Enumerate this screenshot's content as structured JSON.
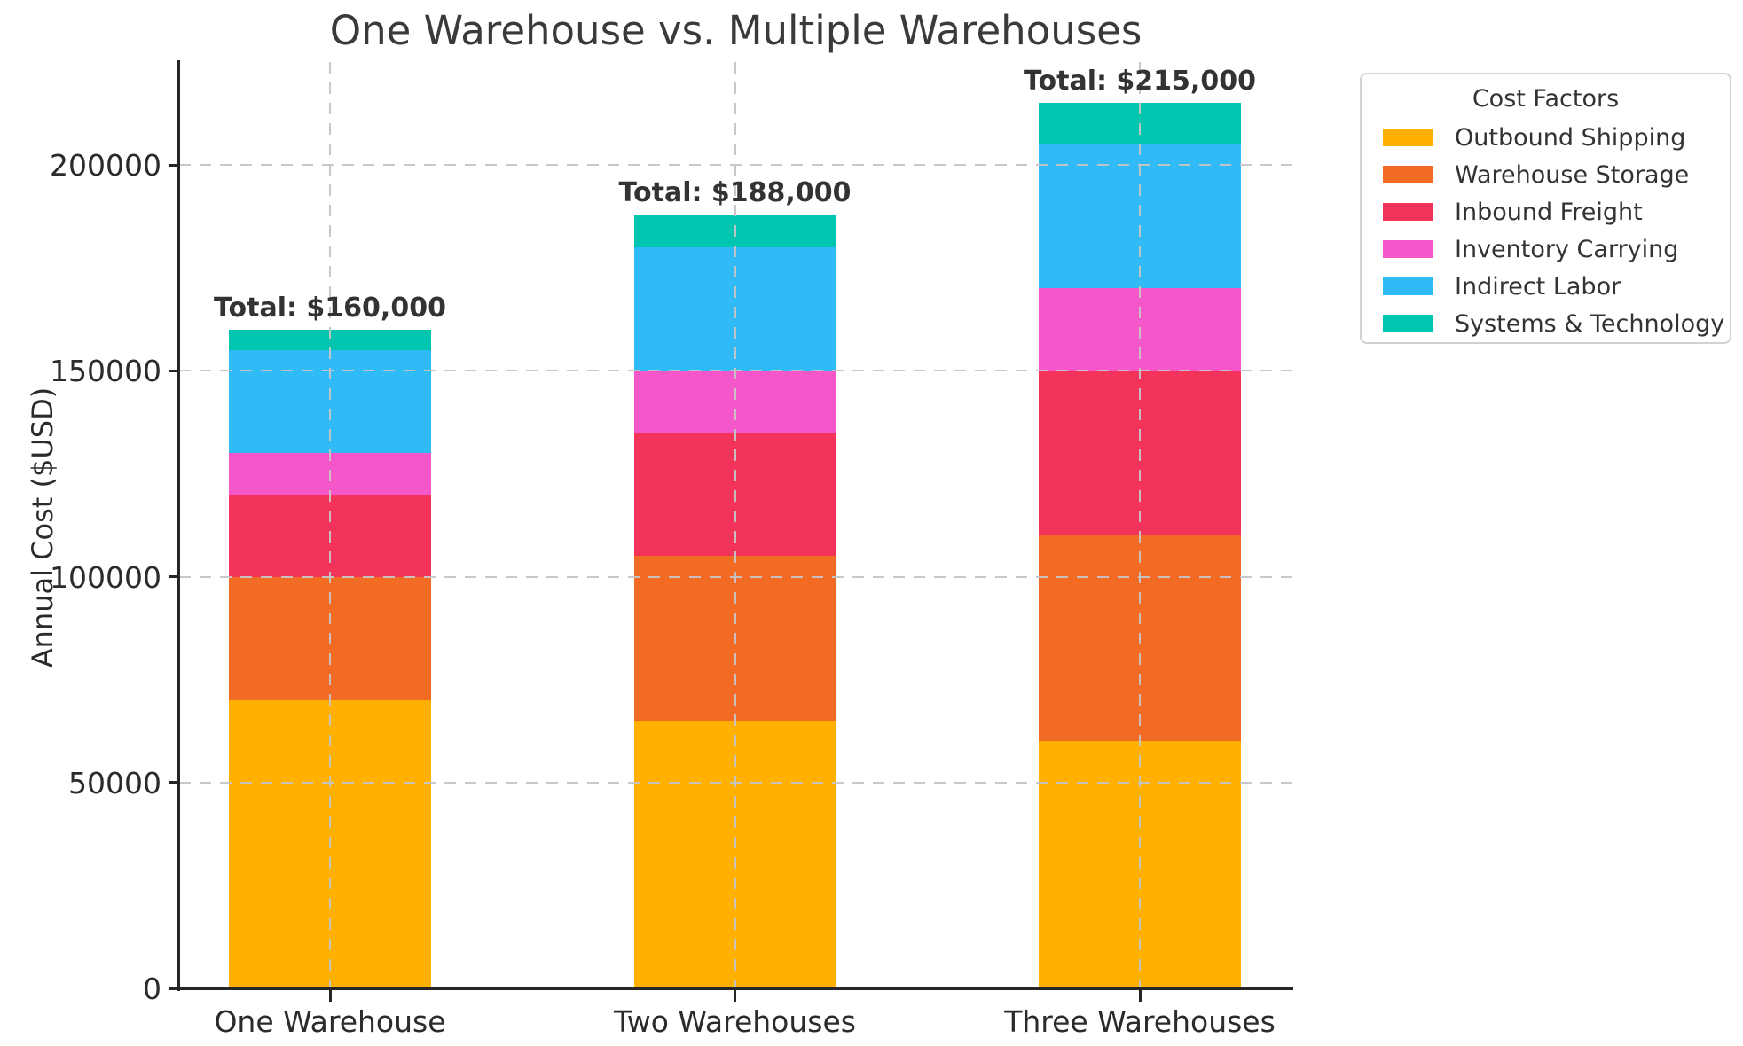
{
  "chart_data": {
    "type": "bar",
    "stacked": true,
    "title": "One Warehouse vs. Multiple Warehouses",
    "ylabel": "Annual Cost ($USD)",
    "xlabel": "",
    "categories": [
      "One Warehouse",
      "Two Warehouses",
      "Three Warehouses"
    ],
    "series": [
      {
        "name": "Outbound Shipping",
        "color": "#FFB000",
        "values": [
          70000,
          65000,
          60000
        ]
      },
      {
        "name": "Warehouse Storage",
        "color": "#F26B24",
        "values": [
          30000,
          40000,
          50000
        ]
      },
      {
        "name": "Inbound Freight",
        "color": "#F4335B",
        "values": [
          20000,
          30000,
          40000
        ]
      },
      {
        "name": "Inventory Carrying",
        "color": "#F556C9",
        "values": [
          10000,
          15000,
          20000
        ]
      },
      {
        "name": "Indirect Labor",
        "color": "#2FBCF6",
        "values": [
          25000,
          30000,
          35000
        ]
      },
      {
        "name": "Systems & Technology",
        "color": "#00C6B0",
        "values": [
          5000,
          8000,
          10000
        ]
      }
    ],
    "totals": [
      160000,
      188000,
      215000
    ],
    "total_labels": [
      "Total: $160,000",
      "Total: $188,000",
      "Total: $215,000"
    ],
    "yticks": [
      0,
      50000,
      100000,
      150000,
      200000
    ],
    "ytick_labels": [
      "0",
      "50000",
      "100000",
      "150000",
      "200000"
    ],
    "ylim": [
      0,
      225000
    ],
    "legend": {
      "title": "Cost Factors",
      "position": "upper-right"
    },
    "grid": {
      "style": "dashed",
      "axes": "both",
      "color": "#c8c8c8"
    }
  }
}
